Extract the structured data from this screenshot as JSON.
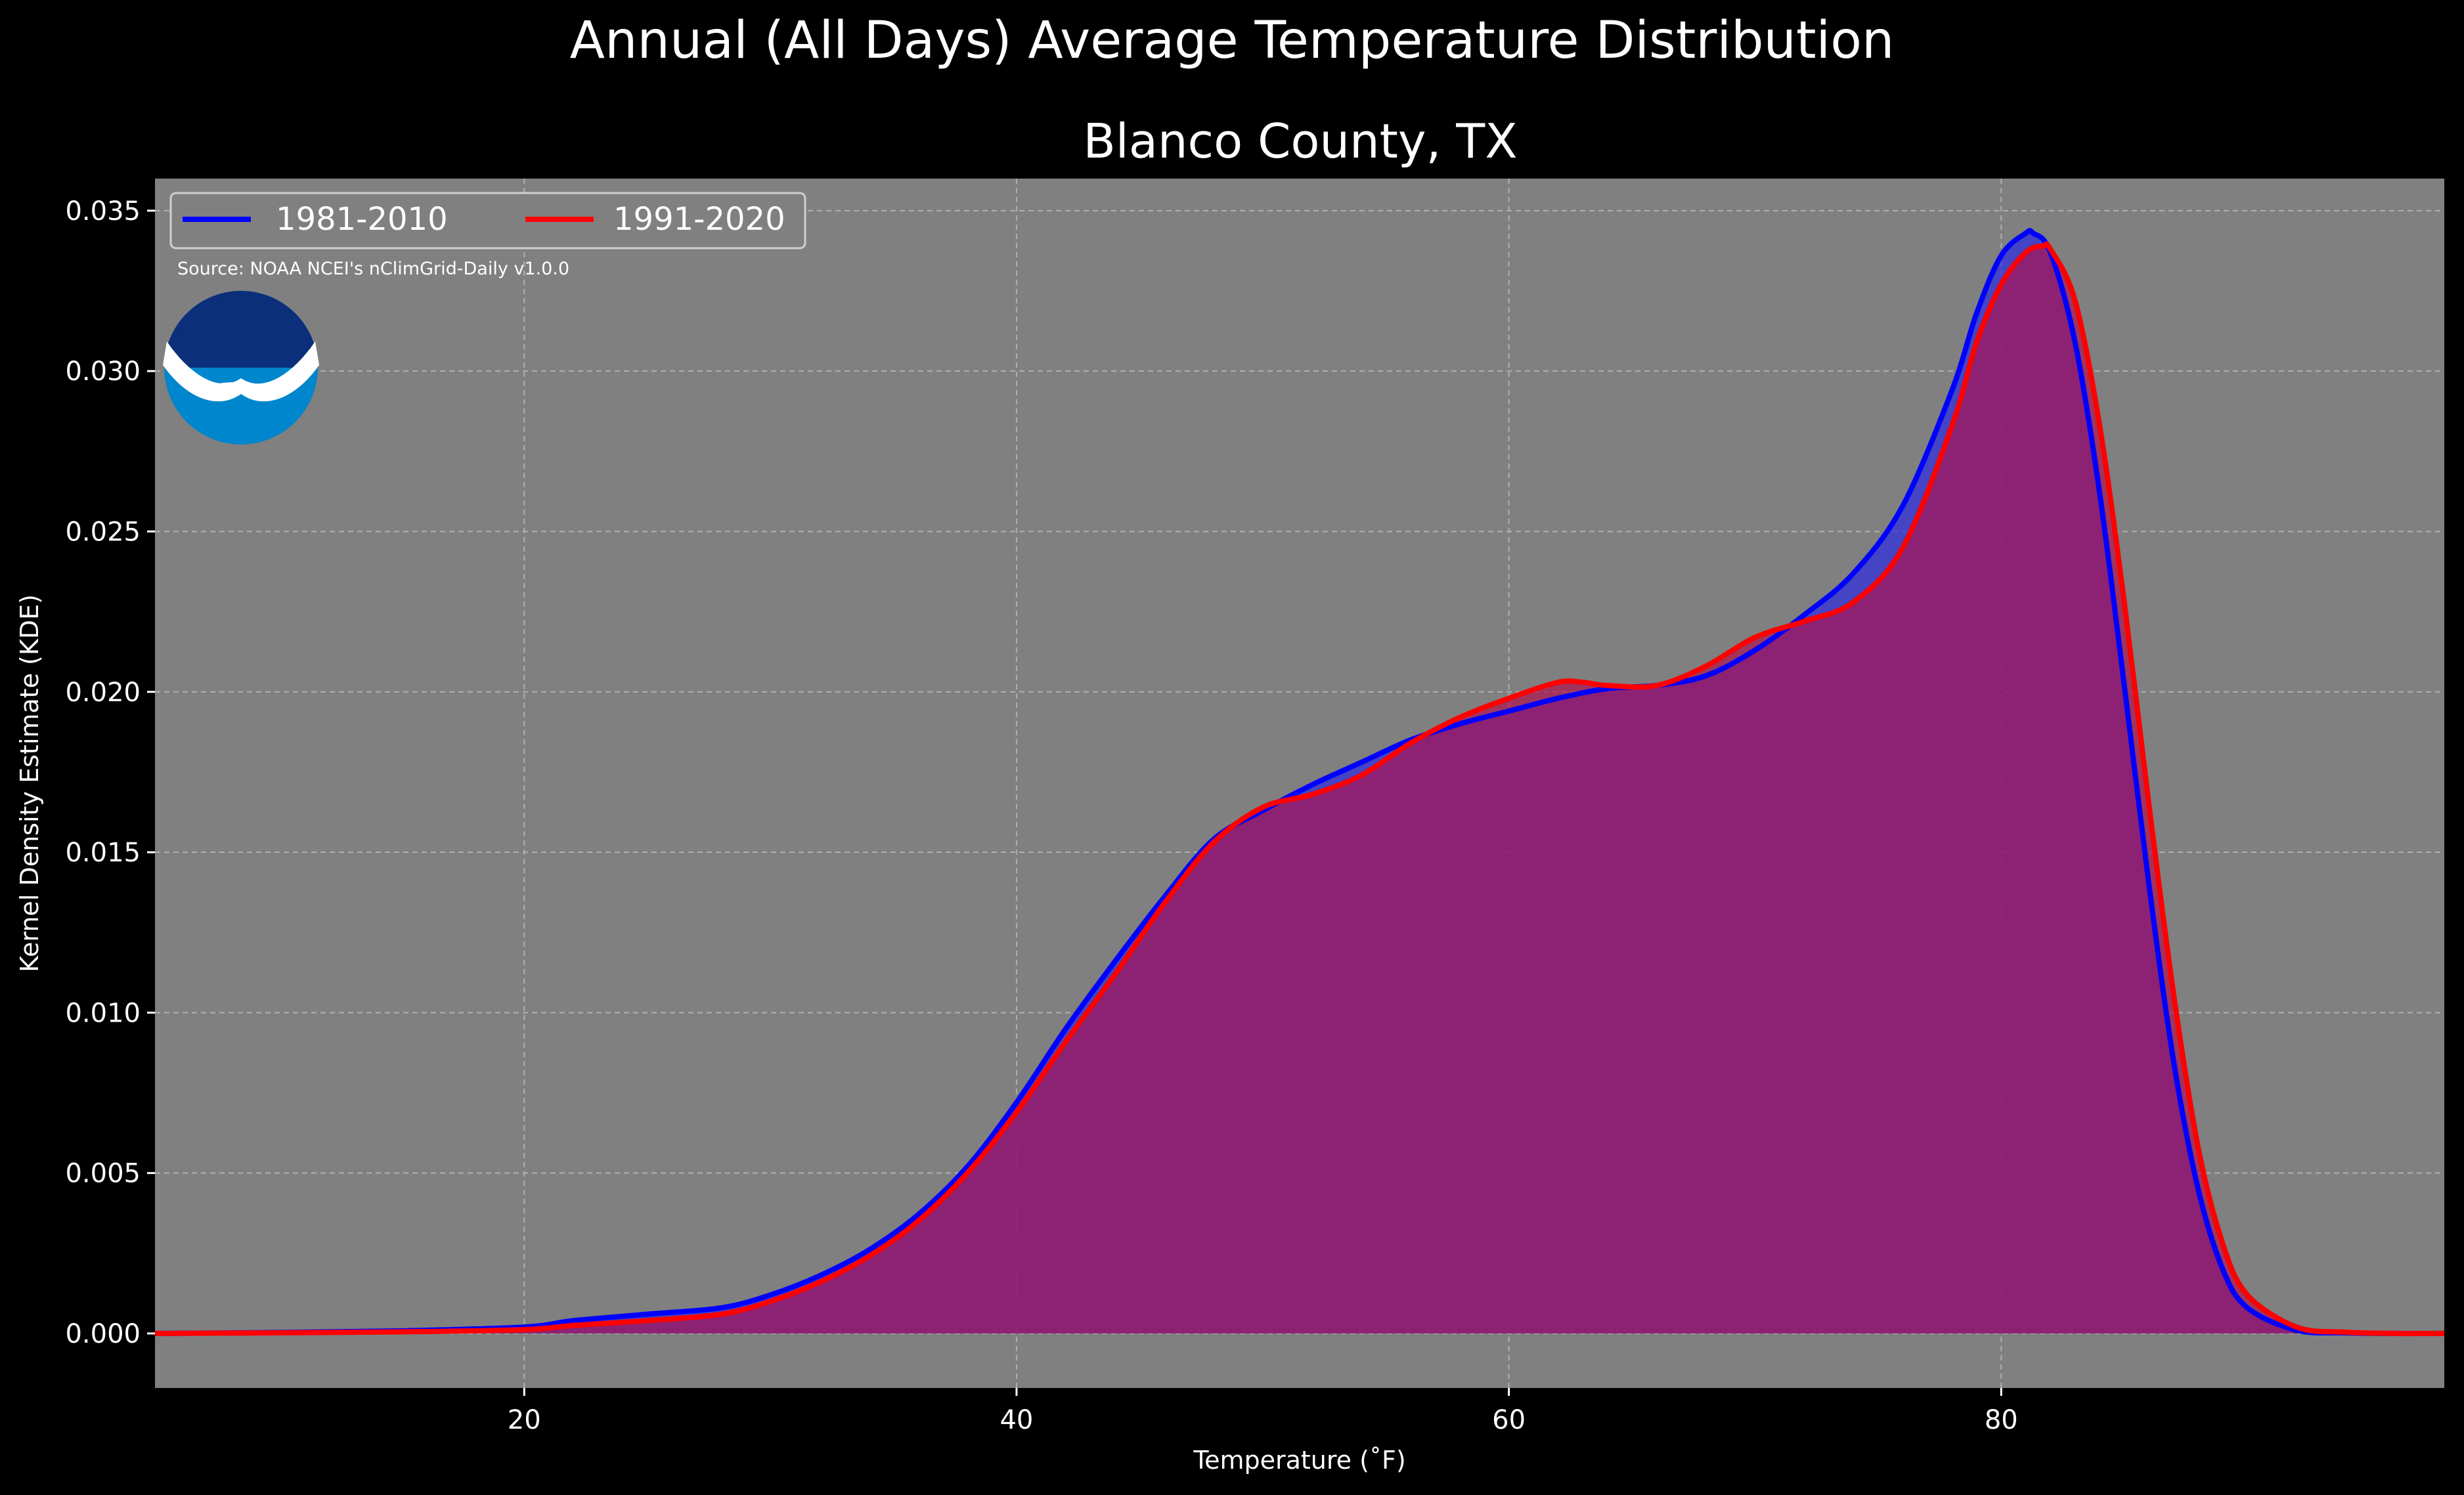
{
  "chart_data": {
    "type": "area",
    "suptitle": "Annual (All Days) Average Temperature Distribution",
    "title": "Blanco County, TX",
    "xlabel": "Temperature (˚F)",
    "ylabel": "Kernel Density Estimate (KDE)",
    "xlim": [
      5,
      98
    ],
    "ylim": [
      -0.0017,
      0.036
    ],
    "xticks": [
      20,
      40,
      60,
      80
    ],
    "xtick_labels": [
      "20",
      "40",
      "60",
      "80"
    ],
    "yticks": [
      0.0,
      0.005,
      0.01,
      0.015,
      0.02,
      0.025,
      0.03,
      0.035
    ],
    "ytick_labels": [
      "0.000",
      "0.005",
      "0.010",
      "0.015",
      "0.020",
      "0.025",
      "0.030",
      "0.035"
    ],
    "grid": true,
    "legend_position": "top-left",
    "source_note": "Source: NOAA NCEI's nClimGrid-Daily v1.0.0",
    "logo_text": "NOAA",
    "colors": {
      "background": "#000000",
      "axes_face": "#808080",
      "grid": "#b0b0b0",
      "text": "#ffffff",
      "logo_dark": "#0b2f7a",
      "logo_light": "#0086cc"
    },
    "series": [
      {
        "name": "1981-2010",
        "color": "#0000ff",
        "fill": "#2828e6",
        "x": [
          5,
          10,
          15,
          20,
          22,
          25,
          28,
          30,
          32,
          34,
          36,
          38,
          40,
          42,
          44,
          46,
          48,
          50,
          52,
          54,
          56,
          58,
          60,
          62,
          64,
          66,
          68,
          70,
          72,
          74,
          76,
          78,
          79,
          80,
          81,
          81.3,
          82,
          83,
          84,
          85,
          86,
          87,
          88,
          89,
          90,
          92,
          94,
          96,
          98
        ],
        "y": [
          0.0,
          3e-05,
          8e-05,
          0.0002,
          0.0004,
          0.0006,
          0.0008,
          0.0012,
          0.0018,
          0.0026,
          0.0037,
          0.0052,
          0.0072,
          0.0095,
          0.0116,
          0.0136,
          0.0154,
          0.0163,
          0.0171,
          0.0178,
          0.0185,
          0.019,
          0.0194,
          0.0198,
          0.0201,
          0.0202,
          0.0205,
          0.0213,
          0.0224,
          0.0237,
          0.0258,
          0.0294,
          0.0318,
          0.0336,
          0.0343,
          0.0343,
          0.0337,
          0.0309,
          0.0262,
          0.0202,
          0.014,
          0.0085,
          0.0045,
          0.002,
          0.0008,
          0.0001,
          2e-05,
          0.0,
          0.0
        ]
      },
      {
        "name": "1991-2020",
        "color": "#ff0000",
        "fill": "#b0104d",
        "x": [
          5,
          10,
          15,
          20,
          22,
          25,
          28,
          30,
          32,
          34,
          36,
          38,
          40,
          42,
          44,
          46,
          48,
          50,
          52,
          54,
          56,
          58,
          60,
          62,
          63,
          64,
          66,
          68,
          70,
          72,
          74,
          76,
          78,
          79,
          80,
          81,
          81.7,
          82,
          83,
          84,
          85,
          86,
          87,
          88,
          89,
          90,
          92,
          94,
          96,
          98
        ],
        "y": [
          0.0,
          2e-05,
          5e-05,
          0.00012,
          0.00025,
          0.0004,
          0.0006,
          0.001,
          0.0016,
          0.0024,
          0.0035,
          0.005,
          0.0069,
          0.0091,
          0.0112,
          0.0134,
          0.0153,
          0.0164,
          0.0168,
          0.0174,
          0.0184,
          0.0192,
          0.0198,
          0.0203,
          0.0203,
          0.0202,
          0.0202,
          0.0208,
          0.0217,
          0.0222,
          0.0228,
          0.0245,
          0.0283,
          0.0309,
          0.0327,
          0.0337,
          0.0339,
          0.0338,
          0.0322,
          0.0283,
          0.0228,
          0.0165,
          0.0106,
          0.0058,
          0.0028,
          0.0012,
          0.0002,
          4e-05,
          0.0,
          0.0
        ]
      }
    ]
  }
}
